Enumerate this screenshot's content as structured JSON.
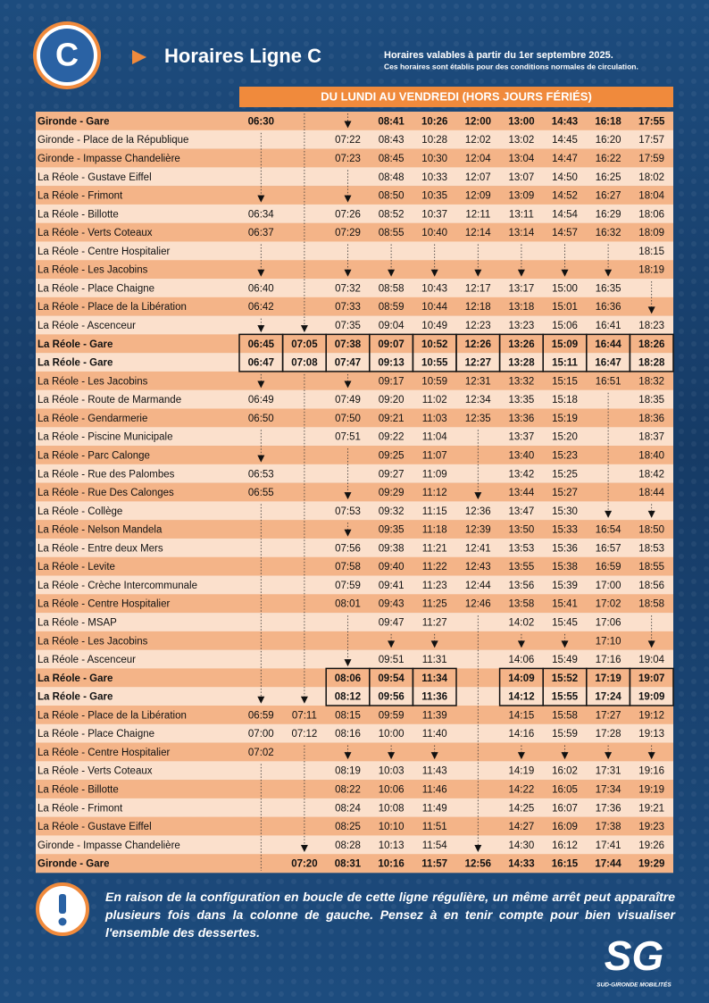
{
  "header": {
    "badge": "C",
    "title": "Horaires Ligne C",
    "validity": "Horaires valables à partir du 1er septembre 2025.",
    "note": "Ces horaires sont établis pour des conditions normales de circulation."
  },
  "table": {
    "period": "DU LUNDI AU VENDREDI (HORS JOURS FÉRIÉS)",
    "rows": [
      {
        "stop": "Gironde - Gare",
        "times": [
          "06:30",
          null,
          null,
          "08:41",
          "10:26",
          "12:00",
          "13:00",
          "14:43",
          "16:18",
          "17:55"
        ]
      },
      {
        "stop": "Gironde - Place de la République",
        "times": [
          null,
          null,
          "07:22",
          "08:43",
          "10:28",
          "12:02",
          "13:02",
          "14:45",
          "16:20",
          "17:57"
        ]
      },
      {
        "stop": "Gironde - Impasse Chandelière",
        "times": [
          null,
          null,
          "07:23",
          "08:45",
          "10:30",
          "12:04",
          "13:04",
          "14:47",
          "16:22",
          "17:59"
        ]
      },
      {
        "stop": "La Réole - Gustave Eiffel",
        "times": [
          null,
          null,
          null,
          "08:48",
          "10:33",
          "12:07",
          "13:07",
          "14:50",
          "16:25",
          "18:02"
        ]
      },
      {
        "stop": "La Réole - Frimont",
        "times": [
          null,
          null,
          null,
          "08:50",
          "10:35",
          "12:09",
          "13:09",
          "14:52",
          "16:27",
          "18:04"
        ]
      },
      {
        "stop": "La Réole - Billotte",
        "times": [
          "06:34",
          null,
          "07:26",
          "08:52",
          "10:37",
          "12:11",
          "13:11",
          "14:54",
          "16:29",
          "18:06"
        ]
      },
      {
        "stop": "La Réole - Verts Coteaux",
        "times": [
          "06:37",
          null,
          "07:29",
          "08:55",
          "10:40",
          "12:14",
          "13:14",
          "14:57",
          "16:32",
          "18:09"
        ]
      },
      {
        "stop": "La Réole - Centre Hospitalier",
        "times": [
          null,
          null,
          null,
          null,
          null,
          null,
          null,
          null,
          null,
          "18:15"
        ]
      },
      {
        "stop": "La Réole - Les Jacobins",
        "times": [
          null,
          null,
          null,
          null,
          null,
          null,
          null,
          null,
          null,
          "18:19"
        ]
      },
      {
        "stop": "La Réole - Place Chaigne",
        "times": [
          "06:40",
          null,
          "07:32",
          "08:58",
          "10:43",
          "12:17",
          "13:17",
          "15:00",
          "16:35",
          null
        ]
      },
      {
        "stop": "La Réole - Place de la Libération",
        "times": [
          "06:42",
          null,
          "07:33",
          "08:59",
          "10:44",
          "12:18",
          "13:18",
          "15:01",
          "16:36",
          null
        ]
      },
      {
        "stop": "La Réole - Ascenceur",
        "times": [
          null,
          null,
          "07:35",
          "09:04",
          "10:49",
          "12:23",
          "13:23",
          "15:06",
          "16:41",
          "18:23"
        ]
      },
      {
        "stop": "La Réole - Gare",
        "times": [
          "06:45",
          "07:05",
          "07:38",
          "09:07",
          "10:52",
          "12:26",
          "13:26",
          "15:09",
          "16:44",
          "18:26"
        ]
      },
      {
        "stop": "La Réole - Gare",
        "times": [
          "06:47",
          "07:08",
          "07:47",
          "09:13",
          "10:55",
          "12:27",
          "13:28",
          "15:11",
          "16:47",
          "18:28"
        ]
      },
      {
        "stop": "La Réole - Les Jacobins",
        "times": [
          null,
          null,
          null,
          "09:17",
          "10:59",
          "12:31",
          "13:32",
          "15:15",
          "16:51",
          "18:32"
        ]
      },
      {
        "stop": "La Réole - Route de Marmande",
        "times": [
          "06:49",
          null,
          "07:49",
          "09:20",
          "11:02",
          "12:34",
          "13:35",
          "15:18",
          null,
          "18:35"
        ]
      },
      {
        "stop": "La Réole - Gendarmerie",
        "times": [
          "06:50",
          null,
          "07:50",
          "09:21",
          "11:03",
          "12:35",
          "13:36",
          "15:19",
          null,
          "18:36"
        ]
      },
      {
        "stop": "La Réole - Piscine Municipale",
        "times": [
          null,
          null,
          "07:51",
          "09:22",
          "11:04",
          null,
          "13:37",
          "15:20",
          null,
          "18:37"
        ]
      },
      {
        "stop": "La Réole - Parc Calonge",
        "times": [
          null,
          null,
          null,
          "09:25",
          "11:07",
          null,
          "13:40",
          "15:23",
          null,
          "18:40"
        ]
      },
      {
        "stop": "La Réole - Rue des Palombes",
        "times": [
          "06:53",
          null,
          null,
          "09:27",
          "11:09",
          null,
          "13:42",
          "15:25",
          null,
          "18:42"
        ]
      },
      {
        "stop": "La Réole - Rue Des Calonges",
        "times": [
          "06:55",
          null,
          null,
          "09:29",
          "11:12",
          null,
          "13:44",
          "15:27",
          null,
          "18:44"
        ]
      },
      {
        "stop": "La Réole - Collège",
        "times": [
          null,
          null,
          "07:53",
          "09:32",
          "11:15",
          "12:36",
          "13:47",
          "15:30",
          null,
          null
        ]
      },
      {
        "stop": "La Réole - Nelson Mandela",
        "times": [
          null,
          null,
          null,
          "09:35",
          "11:18",
          "12:39",
          "13:50",
          "15:33",
          "16:54",
          "18:50"
        ]
      },
      {
        "stop": "La Réole - Entre deux Mers",
        "times": [
          null,
          null,
          "07:56",
          "09:38",
          "11:21",
          "12:41",
          "13:53",
          "15:36",
          "16:57",
          "18:53"
        ]
      },
      {
        "stop": "La Réole - Levite",
        "times": [
          null,
          null,
          "07:58",
          "09:40",
          "11:22",
          "12:43",
          "13:55",
          "15:38",
          "16:59",
          "18:55"
        ]
      },
      {
        "stop": "La Réole - Crèche Intercommunale",
        "times": [
          null,
          null,
          "07:59",
          "09:41",
          "11:23",
          "12:44",
          "13:56",
          "15:39",
          "17:00",
          "18:56"
        ]
      },
      {
        "stop": "La Réole - Centre Hospitalier",
        "times": [
          null,
          null,
          "08:01",
          "09:43",
          "11:25",
          "12:46",
          "13:58",
          "15:41",
          "17:02",
          "18:58"
        ]
      },
      {
        "stop": "La Réole - MSAP",
        "times": [
          null,
          null,
          null,
          "09:47",
          "11:27",
          null,
          "14:02",
          "15:45",
          "17:06",
          null
        ]
      },
      {
        "stop": "La Réole - Les Jacobins",
        "times": [
          null,
          null,
          null,
          null,
          null,
          null,
          null,
          null,
          "17:10",
          null
        ]
      },
      {
        "stop": "La Réole - Ascenceur",
        "times": [
          null,
          null,
          null,
          "09:51",
          "11:31",
          null,
          "14:06",
          "15:49",
          "17:16",
          "19:04"
        ]
      },
      {
        "stop": "La Réole - Gare",
        "times": [
          null,
          null,
          "08:06",
          "09:54",
          "11:34",
          null,
          "14:09",
          "15:52",
          "17:19",
          "19:07"
        ]
      },
      {
        "stop": "La Réole - Gare",
        "times": [
          null,
          null,
          "08:12",
          "09:56",
          "11:36",
          null,
          "14:12",
          "15:55",
          "17:24",
          "19:09"
        ]
      },
      {
        "stop": "La Réole - Place de la Libération",
        "times": [
          "06:59",
          "07:11",
          "08:15",
          "09:59",
          "11:39",
          null,
          "14:15",
          "15:58",
          "17:27",
          "19:12"
        ]
      },
      {
        "stop": "La Réole - Place Chaigne",
        "times": [
          "07:00",
          "07:12",
          "08:16",
          "10:00",
          "11:40",
          null,
          "14:16",
          "15:59",
          "17:28",
          "19:13"
        ]
      },
      {
        "stop": "La Réole - Centre Hospitalier",
        "times": [
          "07:02",
          null,
          null,
          null,
          null,
          null,
          null,
          null,
          null,
          null
        ]
      },
      {
        "stop": "La Réole - Verts Coteaux",
        "times": [
          null,
          null,
          "08:19",
          "10:03",
          "11:43",
          null,
          "14:19",
          "16:02",
          "17:31",
          "19:16"
        ]
      },
      {
        "stop": "La Réole - Billotte",
        "times": [
          null,
          null,
          "08:22",
          "10:06",
          "11:46",
          null,
          "14:22",
          "16:05",
          "17:34",
          "19:19"
        ]
      },
      {
        "stop": "La Réole - Frimont",
        "times": [
          null,
          null,
          "08:24",
          "10:08",
          "11:49",
          null,
          "14:25",
          "16:07",
          "17:36",
          "19:21"
        ]
      },
      {
        "stop": "La Réole - Gustave Eiffel",
        "times": [
          null,
          null,
          "08:25",
          "10:10",
          "11:51",
          null,
          "14:27",
          "16:09",
          "17:38",
          "19:23"
        ]
      },
      {
        "stop": "Gironde - Impasse Chandelière",
        "times": [
          null,
          null,
          "08:28",
          "10:13",
          "11:54",
          null,
          "14:30",
          "16:12",
          "17:41",
          "19:26"
        ]
      },
      {
        "stop": "Gironde - Gare",
        "times": [
          null,
          "07:20",
          "08:31",
          "10:16",
          "11:57",
          "12:56",
          "14:33",
          "16:15",
          "17:44",
          "19:29"
        ]
      }
    ]
  },
  "notice": "En raison de la configuration en boucle de cette ligne régulière, un même arrêt peut apparaître plusieurs fois dans la colonne de gauche. Pensez à en tenir compte pour bien visualiser l'ensemble des dessertes.",
  "logo": {
    "mark": "SG",
    "name": "SUD-GIRONDE MOBILITÉS"
  }
}
